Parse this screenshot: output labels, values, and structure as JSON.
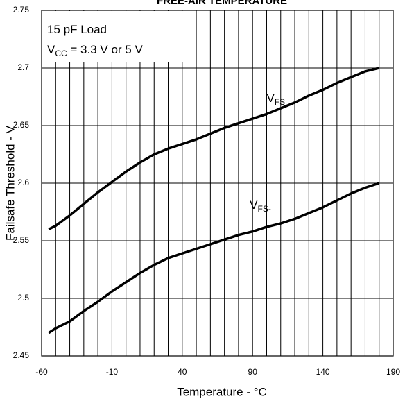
{
  "chart_data": {
    "type": "line",
    "title": "FREE-AIR TEMPERATURE",
    "x_label": "Temperature - °C",
    "y_label": "Failsafe Threshold - V",
    "annotations": [
      [
        {
          "text": "15 pF Load"
        }
      ],
      [
        {
          "text": "V"
        },
        {
          "text": "CC",
          "sub": true
        },
        {
          "text": " = 3.3 V or 5 V"
        }
      ]
    ],
    "x": [
      -55,
      -50,
      -40,
      -30,
      -20,
      -10,
      0,
      10,
      20,
      30,
      40,
      50,
      60,
      70,
      80,
      90,
      100,
      110,
      120,
      130,
      140,
      150,
      160,
      170,
      180
    ],
    "series": [
      {
        "name": "V",
        "name_sub": "FS",
        "color": "#000000",
        "values": [
          2.56,
          2.563,
          2.572,
          2.582,
          2.592,
          2.601,
          2.61,
          2.618,
          2.625,
          2.63,
          2.634,
          2.638,
          2.643,
          2.648,
          2.652,
          2.656,
          2.66,
          2.665,
          2.67,
          2.676,
          2.681,
          2.687,
          2.692,
          2.697,
          2.7
        ]
      },
      {
        "name": "V",
        "name_sub": "FS-",
        "color": "#000000",
        "values": [
          2.47,
          2.474,
          2.48,
          2.489,
          2.497,
          2.506,
          2.514,
          2.522,
          2.529,
          2.535,
          2.539,
          2.543,
          2.547,
          2.551,
          2.555,
          2.558,
          2.562,
          2.565,
          2.569,
          2.574,
          2.579,
          2.585,
          2.591,
          2.596,
          2.6
        ]
      }
    ],
    "xlim": [
      -60,
      190
    ],
    "xticks": [
      -60,
      -10,
      40,
      90,
      140,
      190
    ],
    "xgrid": [
      -60,
      -50,
      -40,
      -30,
      -20,
      -10,
      0,
      10,
      20,
      30,
      40,
      50,
      60,
      70,
      80,
      90,
      100,
      110,
      120,
      130,
      140,
      150,
      160,
      170,
      180,
      190
    ],
    "ylim": [
      2.45,
      2.75
    ],
    "yticks": [
      2.45,
      2.5,
      2.55,
      2.6,
      2.65,
      2.7,
      2.75
    ],
    "grid": true
  }
}
